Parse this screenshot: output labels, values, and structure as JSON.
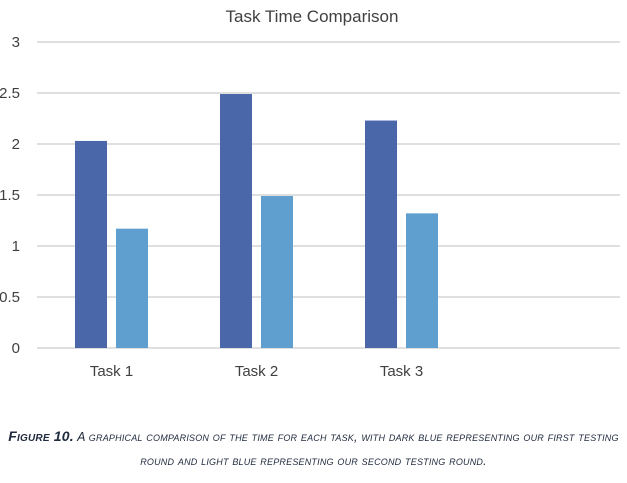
{
  "chart_data": {
    "type": "bar",
    "title": "Task Time Comparison",
    "categories": [
      "Task 1",
      "Task 2",
      "Task 3"
    ],
    "series": [
      {
        "values": [
          2.03,
          2.49,
          2.23
        ],
        "color": "#4a67aa"
      },
      {
        "values": [
          1.17,
          1.49,
          1.32
        ],
        "color": "#5f9fd0"
      }
    ],
    "ylim": [
      0,
      3
    ],
    "yticks": [
      "0",
      "0.5",
      "1",
      "1.5",
      "2",
      "2.5",
      "3"
    ],
    "grid": true,
    "legend": "none"
  },
  "caption": {
    "label": "Figure 10.",
    "text": "A graphical comparison of the time for each task, with dark blue representing our first testing round and light blue representing our second testing round."
  }
}
